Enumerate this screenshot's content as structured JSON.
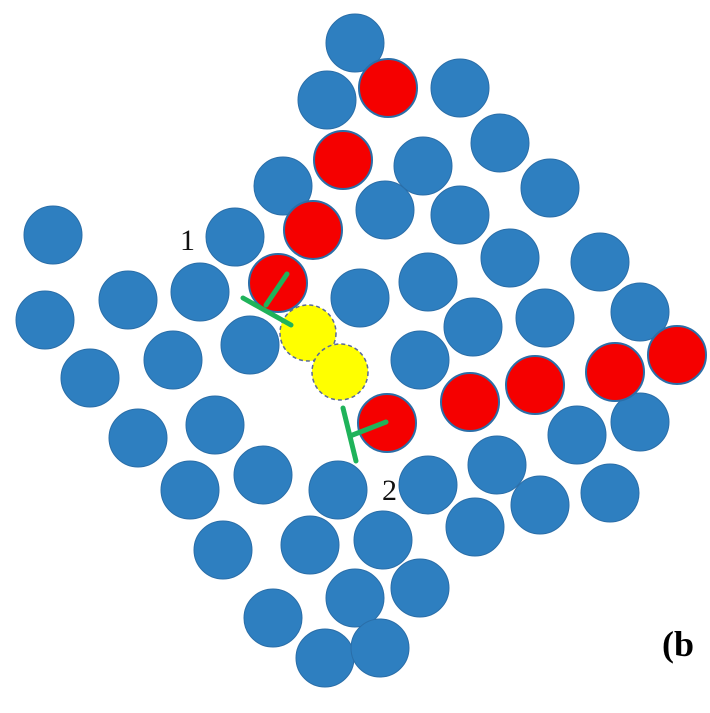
{
  "labels": {
    "point_1": "1",
    "point_2": "2",
    "panel": "(b"
  }
}
